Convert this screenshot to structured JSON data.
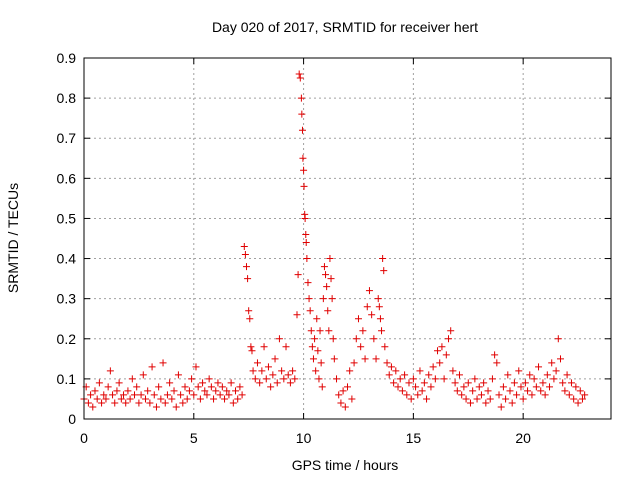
{
  "chart_data": {
    "type": "scatter",
    "title": "Day 020 of 2017, SRMTID for receiver hert",
    "xlabel": "GPS time / hours",
    "ylabel": "SRMTID / TECUs",
    "xlim": [
      0,
      24
    ],
    "ylim": [
      0,
      0.9
    ],
    "xticks": [
      0,
      5,
      10,
      15,
      20
    ],
    "xtick_labels": [
      "0",
      "5",
      "10",
      "15",
      "20"
    ],
    "yticks": [
      0,
      0.1,
      0.2,
      0.3,
      0.4,
      0.5,
      0.6,
      0.7,
      0.8,
      0.9
    ],
    "ytick_labels": [
      "0",
      "0.1",
      "0.2",
      "0.3",
      "0.4",
      "0.5",
      "0.6",
      "0.7",
      "0.8",
      "0.9"
    ],
    "grid": true,
    "marker": "+",
    "color": "#e00000",
    "series": [
      {
        "name": "SRMTID",
        "points": [
          [
            0.0,
            0.05
          ],
          [
            0.1,
            0.08
          ],
          [
            0.2,
            0.04
          ],
          [
            0.3,
            0.06
          ],
          [
            0.4,
            0.03
          ],
          [
            0.5,
            0.07
          ],
          [
            0.6,
            0.05
          ],
          [
            0.7,
            0.09
          ],
          [
            0.8,
            0.04
          ],
          [
            0.9,
            0.06
          ],
          [
            1.0,
            0.05
          ],
          [
            1.1,
            0.08
          ],
          [
            1.2,
            0.12
          ],
          [
            1.3,
            0.06
          ],
          [
            1.4,
            0.04
          ],
          [
            1.5,
            0.07
          ],
          [
            1.6,
            0.09
          ],
          [
            1.7,
            0.05
          ],
          [
            1.8,
            0.06
          ],
          [
            1.9,
            0.04
          ],
          [
            2.0,
            0.07
          ],
          [
            2.1,
            0.05
          ],
          [
            2.2,
            0.1
          ],
          [
            2.3,
            0.06
          ],
          [
            2.4,
            0.08
          ],
          [
            2.5,
            0.04
          ],
          [
            2.6,
            0.06
          ],
          [
            2.7,
            0.11
          ],
          [
            2.8,
            0.05
          ],
          [
            2.9,
            0.07
          ],
          [
            3.0,
            0.04
          ],
          [
            3.1,
            0.13
          ],
          [
            3.2,
            0.06
          ],
          [
            3.3,
            0.03
          ],
          [
            3.4,
            0.08
          ],
          [
            3.5,
            0.05
          ],
          [
            3.6,
            0.14
          ],
          [
            3.7,
            0.04
          ],
          [
            3.8,
            0.06
          ],
          [
            3.9,
            0.09
          ],
          [
            4.0,
            0.05
          ],
          [
            4.1,
            0.07
          ],
          [
            4.2,
            0.03
          ],
          [
            4.3,
            0.11
          ],
          [
            4.4,
            0.06
          ],
          [
            4.5,
            0.04
          ],
          [
            4.6,
            0.08
          ],
          [
            4.7,
            0.05
          ],
          [
            4.8,
            0.07
          ],
          [
            4.9,
            0.1
          ],
          [
            5.0,
            0.06
          ],
          [
            5.1,
            0.13
          ],
          [
            5.2,
            0.08
          ],
          [
            5.3,
            0.05
          ],
          [
            5.4,
            0.09
          ],
          [
            5.5,
            0.07
          ],
          [
            5.6,
            0.06
          ],
          [
            5.7,
            0.1
          ],
          [
            5.8,
            0.08
          ],
          [
            5.9,
            0.05
          ],
          [
            6.0,
            0.07
          ],
          [
            6.1,
            0.09
          ],
          [
            6.2,
            0.06
          ],
          [
            6.3,
            0.08
          ],
          [
            6.4,
            0.05
          ],
          [
            6.5,
            0.07
          ],
          [
            6.6,
            0.06
          ],
          [
            6.7,
            0.09
          ],
          [
            6.8,
            0.04
          ],
          [
            6.9,
            0.07
          ],
          [
            7.0,
            0.05
          ],
          [
            7.1,
            0.08
          ],
          [
            7.2,
            0.06
          ],
          [
            7.3,
            0.43
          ],
          [
            7.35,
            0.41
          ],
          [
            7.4,
            0.38
          ],
          [
            7.45,
            0.35
          ],
          [
            7.5,
            0.27
          ],
          [
            7.55,
            0.25
          ],
          [
            7.6,
            0.18
          ],
          [
            7.65,
            0.17
          ],
          [
            7.7,
            0.12
          ],
          [
            7.8,
            0.1
          ],
          [
            7.9,
            0.14
          ],
          [
            8.0,
            0.09
          ],
          [
            8.1,
            0.12
          ],
          [
            8.2,
            0.18
          ],
          [
            8.3,
            0.1
          ],
          [
            8.4,
            0.13
          ],
          [
            8.5,
            0.08
          ],
          [
            8.6,
            0.11
          ],
          [
            8.7,
            0.15
          ],
          [
            8.8,
            0.09
          ],
          [
            8.9,
            0.2
          ],
          [
            9.0,
            0.12
          ],
          [
            9.1,
            0.1
          ],
          [
            9.2,
            0.18
          ],
          [
            9.3,
            0.11
          ],
          [
            9.4,
            0.09
          ],
          [
            9.5,
            0.12
          ],
          [
            9.6,
            0.1
          ],
          [
            9.7,
            0.26
          ],
          [
            9.75,
            0.36
          ],
          [
            9.8,
            0.86
          ],
          [
            9.85,
            0.85
          ],
          [
            9.9,
            0.8
          ],
          [
            9.92,
            0.76
          ],
          [
            9.95,
            0.72
          ],
          [
            9.97,
            0.65
          ],
          [
            10.0,
            0.62
          ],
          [
            10.02,
            0.58
          ],
          [
            10.05,
            0.51
          ],
          [
            10.07,
            0.5
          ],
          [
            10.1,
            0.46
          ],
          [
            10.12,
            0.44
          ],
          [
            10.15,
            0.4
          ],
          [
            10.2,
            0.34
          ],
          [
            10.25,
            0.3
          ],
          [
            10.3,
            0.27
          ],
          [
            10.35,
            0.22
          ],
          [
            10.4,
            0.18
          ],
          [
            10.45,
            0.15
          ],
          [
            10.5,
            0.2
          ],
          [
            10.55,
            0.12
          ],
          [
            10.6,
            0.25
          ],
          [
            10.65,
            0.17
          ],
          [
            10.7,
            0.1
          ],
          [
            10.75,
            0.22
          ],
          [
            10.8,
            0.14
          ],
          [
            10.85,
            0.08
          ],
          [
            10.9,
            0.3
          ],
          [
            10.95,
            0.38
          ],
          [
            11.0,
            0.36
          ],
          [
            11.05,
            0.33
          ],
          [
            11.1,
            0.27
          ],
          [
            11.15,
            0.22
          ],
          [
            11.2,
            0.4
          ],
          [
            11.25,
            0.35
          ],
          [
            11.3,
            0.3
          ],
          [
            11.35,
            0.2
          ],
          [
            11.4,
            0.15
          ],
          [
            11.5,
            0.1
          ],
          [
            11.6,
            0.06
          ],
          [
            11.7,
            0.04
          ],
          [
            11.8,
            0.07
          ],
          [
            11.9,
            0.03
          ],
          [
            12.0,
            0.08
          ],
          [
            12.1,
            0.12
          ],
          [
            12.2,
            0.05
          ],
          [
            12.3,
            0.14
          ],
          [
            12.4,
            0.2
          ],
          [
            12.5,
            0.25
          ],
          [
            12.6,
            0.18
          ],
          [
            12.7,
            0.22
          ],
          [
            12.8,
            0.15
          ],
          [
            12.9,
            0.28
          ],
          [
            13.0,
            0.32
          ],
          [
            13.1,
            0.26
          ],
          [
            13.2,
            0.2
          ],
          [
            13.3,
            0.15
          ],
          [
            13.4,
            0.3
          ],
          [
            13.45,
            0.28
          ],
          [
            13.5,
            0.25
          ],
          [
            13.55,
            0.22
          ],
          [
            13.6,
            0.4
          ],
          [
            13.65,
            0.37
          ],
          [
            13.7,
            0.18
          ],
          [
            13.8,
            0.14
          ],
          [
            13.9,
            0.11
          ],
          [
            14.0,
            0.13
          ],
          [
            14.1,
            0.09
          ],
          [
            14.2,
            0.12
          ],
          [
            14.3,
            0.08
          ],
          [
            14.4,
            0.1
          ],
          [
            14.5,
            0.07
          ],
          [
            14.6,
            0.11
          ],
          [
            14.7,
            0.06
          ],
          [
            14.8,
            0.09
          ],
          [
            14.9,
            0.05
          ],
          [
            15.0,
            0.1
          ],
          [
            15.1,
            0.08
          ],
          [
            15.2,
            0.06
          ],
          [
            15.3,
            0.12
          ],
          [
            15.4,
            0.07
          ],
          [
            15.5,
            0.09
          ],
          [
            15.6,
            0.05
          ],
          [
            15.7,
            0.11
          ],
          [
            15.8,
            0.08
          ],
          [
            15.9,
            0.13
          ],
          [
            16.0,
            0.1
          ],
          [
            16.1,
            0.17
          ],
          [
            16.2,
            0.14
          ],
          [
            16.3,
            0.18
          ],
          [
            16.4,
            0.1
          ],
          [
            16.5,
            0.16
          ],
          [
            16.6,
            0.2
          ],
          [
            16.7,
            0.22
          ],
          [
            16.8,
            0.12
          ],
          [
            16.9,
            0.09
          ],
          [
            17.0,
            0.07
          ],
          [
            17.1,
            0.11
          ],
          [
            17.2,
            0.06
          ],
          [
            17.3,
            0.08
          ],
          [
            17.4,
            0.05
          ],
          [
            17.5,
            0.09
          ],
          [
            17.6,
            0.04
          ],
          [
            17.7,
            0.07
          ],
          [
            17.8,
            0.1
          ],
          [
            17.9,
            0.05
          ],
          [
            18.0,
            0.08
          ],
          [
            18.1,
            0.06
          ],
          [
            18.2,
            0.09
          ],
          [
            18.3,
            0.04
          ],
          [
            18.4,
            0.07
          ],
          [
            18.5,
            0.05
          ],
          [
            18.6,
            0.1
          ],
          [
            18.7,
            0.16
          ],
          [
            18.8,
            0.14
          ],
          [
            18.9,
            0.06
          ],
          [
            19.0,
            0.03
          ],
          [
            19.1,
            0.08
          ],
          [
            19.2,
            0.05
          ],
          [
            19.3,
            0.11
          ],
          [
            19.4,
            0.07
          ],
          [
            19.5,
            0.04
          ],
          [
            19.6,
            0.09
          ],
          [
            19.7,
            0.06
          ],
          [
            19.8,
            0.12
          ],
          [
            19.9,
            0.08
          ],
          [
            20.0,
            0.05
          ],
          [
            20.1,
            0.09
          ],
          [
            20.2,
            0.07
          ],
          [
            20.3,
            0.11
          ],
          [
            20.4,
            0.06
          ],
          [
            20.5,
            0.1
          ],
          [
            20.6,
            0.08
          ],
          [
            20.7,
            0.13
          ],
          [
            20.8,
            0.07
          ],
          [
            20.9,
            0.09
          ],
          [
            21.0,
            0.06
          ],
          [
            21.1,
            0.11
          ],
          [
            21.2,
            0.08
          ],
          [
            21.3,
            0.14
          ],
          [
            21.4,
            0.1
          ],
          [
            21.5,
            0.12
          ],
          [
            21.6,
            0.2
          ],
          [
            21.7,
            0.15
          ],
          [
            21.8,
            0.09
          ],
          [
            21.9,
            0.07
          ],
          [
            22.0,
            0.11
          ],
          [
            22.1,
            0.06
          ],
          [
            22.2,
            0.09
          ],
          [
            22.3,
            0.05
          ],
          [
            22.4,
            0.08
          ],
          [
            22.5,
            0.04
          ],
          [
            22.6,
            0.07
          ],
          [
            22.7,
            0.05
          ],
          [
            22.8,
            0.06
          ]
        ]
      }
    ]
  }
}
